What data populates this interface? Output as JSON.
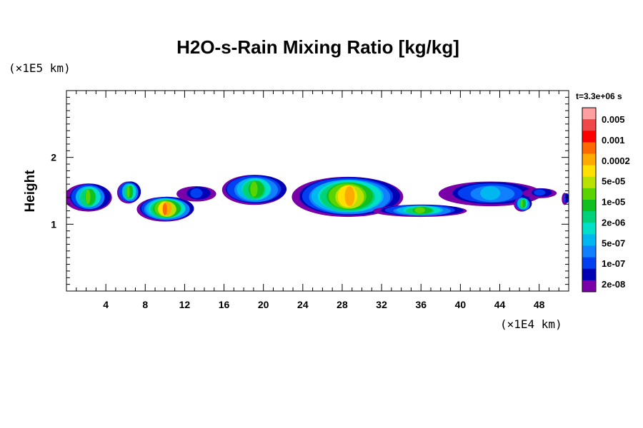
{
  "chart_data": {
    "type": "heatmap",
    "title": "H2O-s-Rain Mixing Ratio [kg/kg]",
    "xlabel": "",
    "ylabel": "Height",
    "x_unit": "(×1E4 km)",
    "y_unit": "(×1E5 km)",
    "time_label": "t=3.3e+06 s",
    "xlim": [
      0,
      51
    ],
    "ylim": [
      0,
      3
    ],
    "x_ticks": [
      4,
      8,
      12,
      16,
      20,
      24,
      28,
      32,
      36,
      40,
      44,
      48
    ],
    "x_tick_labels": [
      "4",
      "8",
      "12",
      "16",
      "20",
      "24",
      "28",
      "32",
      "36",
      "40",
      "44",
      "48"
    ],
    "y_ticks": [
      1,
      2
    ],
    "y_tick_labels": [
      "1",
      "2"
    ],
    "colorbar": {
      "labels": [
        "0.005",
        "0.001",
        "0.0002",
        "5e-05",
        "1e-05",
        "2e-06",
        "5e-07",
        "1e-07",
        "2e-08"
      ],
      "colors_top_to_bottom": [
        "#ff9f9f",
        "#f04848",
        "#ff0000",
        "#ff6a00",
        "#ffaa00",
        "#ffe000",
        "#b8e000",
        "#5ad400",
        "#10c020",
        "#00d27a",
        "#00e0c8",
        "#00b8f0",
        "#1080ff",
        "#0040f0",
        "#0000b4",
        "#7a00a8"
      ]
    },
    "cloud_regions": [
      {
        "x": [
          0,
          4.6
        ],
        "y": [
          1.2,
          1.62
        ],
        "peak_level": 8
      },
      {
        "x": [
          5.2,
          7.6
        ],
        "y": [
          1.32,
          1.65
        ],
        "peak_level": 8
      },
      {
        "x": [
          7.2,
          13.0
        ],
        "y": [
          1.05,
          1.42
        ],
        "peak_level": 12
      },
      {
        "x": [
          11.4,
          15.2
        ],
        "y": [
          1.35,
          1.58
        ],
        "peak_level": 2
      },
      {
        "x": [
          15.8,
          22.5
        ],
        "y": [
          1.3,
          1.75
        ],
        "peak_level": 8
      },
      {
        "x": [
          22.8,
          34.5
        ],
        "y": [
          1.12,
          1.72
        ],
        "peak_level": 11
      },
      {
        "x": [
          31.5,
          40.5
        ],
        "y": [
          1.12,
          1.3
        ],
        "peak_level": 8
      },
      {
        "x": [
          37.8,
          48.5
        ],
        "y": [
          1.28,
          1.65
        ],
        "peak_level": 4
      },
      {
        "x": [
          45.5,
          47.2
        ],
        "y": [
          1.2,
          1.42
        ],
        "peak_level": 8
      },
      {
        "x": [
          46.5,
          49.8
        ],
        "y": [
          1.4,
          1.55
        ],
        "peak_level": 2
      },
      {
        "x": [
          50.4,
          51.0
        ],
        "y": [
          1.3,
          1.48
        ],
        "peak_level": 2
      }
    ]
  }
}
